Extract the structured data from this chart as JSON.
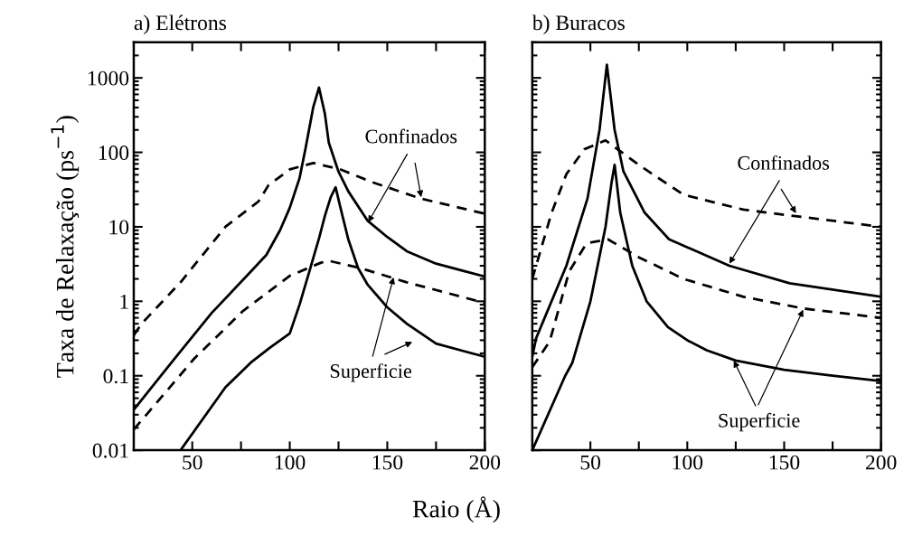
{
  "chart_data": [
    {
      "type": "line",
      "title": "a) Elétrons",
      "xlabel": "Raio (Å)",
      "ylabel": "Taxa de Relaxação (ps$^{−1}$)",
      "xlim": [
        20,
        200
      ],
      "xticks": [
        50,
        {
          "value": 75,
          "label": null
        },
        100,
        {
          "value": 125,
          "label": null
        },
        150,
        {
          "value": 175,
          "label": null
        },
        200
      ],
      "ylim": [
        0.01,
        3000
      ],
      "yticks": [
        0.01,
        0.1,
        1,
        10,
        100,
        1000
      ],
      "log": "y",
      "grid": false,
      "legend": false,
      "series": [
        {
          "color": "#000000",
          "line_style": "solid",
          "x": [
            20,
            41,
            60,
            80,
            88,
            95,
            100,
            105,
            108,
            112,
            115,
            118,
            120,
            125,
            130,
            140,
            150,
            160,
            175,
            200
          ],
          "values": [
            0.035,
            0.17,
            0.7,
            2.5,
            4.2,
            9,
            18,
            45,
            110,
            400,
            740,
            330,
            135,
            55,
            30,
            12,
            7.3,
            4.7,
            3.2,
            2.15
          ]
        },
        {
          "color": "#000000",
          "line_style": "solid",
          "x": [
            44,
            67,
            80,
            90,
            100,
            105,
            110,
            115,
            118,
            121,
            123.5,
            126,
            130,
            135,
            140,
            150,
            160,
            175,
            200
          ],
          "values": [
            0.01,
            0.07,
            0.15,
            0.24,
            0.37,
            0.9,
            2.5,
            7,
            14,
            25,
            34,
            18,
            6.8,
            2.8,
            1.66,
            0.83,
            0.5,
            0.27,
            0.18
          ]
        },
        {
          "color": "#000000",
          "line_style": "dashed",
          "x": [
            20,
            24,
            44,
            67,
            84,
            89,
            100,
            112,
            126,
            142,
            167,
            200
          ],
          "values": [
            0.35,
            0.5,
            1.8,
            10,
            22,
            36,
            59,
            72,
            59,
            40,
            24,
            15
          ]
        },
        {
          "color": "#000000",
          "line_style": "dashed",
          "x": [
            20,
            26.5,
            51,
            76,
            100,
            116,
            120,
            136,
            160,
            200
          ],
          "values": [
            0.019,
            0.03,
            0.17,
            0.74,
            2.2,
            3.3,
            3.5,
            2.8,
            1.8,
            0.95
          ]
        }
      ],
      "annotations": [
        {
          "text": "Confinados",
          "x": 140.2,
          "y": 11.5
        },
        {
          "text": "Superficie",
          "x": 153.2,
          "y": 2.1
        }
      ]
    },
    {
      "type": "line",
      "title": "b) Buracos",
      "xlim": [
        20,
        200
      ],
      "xticks": [
        50,
        {
          "value": 75,
          "label": null
        },
        100,
        {
          "value": 125,
          "label": null
        },
        150,
        {
          "value": 175,
          "label": null
        },
        200
      ],
      "ylim": [
        0.01,
        3000
      ],
      "yticks": [
        0.01,
        0.1,
        1,
        10,
        100,
        1000
      ],
      "log": "y",
      "grid": false,
      "legend": false,
      "tick_labels": "x",
      "series": [
        {
          "color": "#000000",
          "line_style": "solid",
          "x": [
            20,
            22,
            37.6,
            48.5,
            54.7,
            58.5,
            62.5,
            67,
            78,
            90.6,
            121.7,
            152.8,
            200
          ],
          "values": [
            0.18,
            0.32,
            3,
            24,
            200,
            1500,
            200,
            56,
            15.5,
            6.8,
            3,
            1.75,
            1.15
          ]
        },
        {
          "color": "#000000",
          "line_style": "solid",
          "x": [
            20,
            37,
            40.7,
            50,
            57.8,
            60.9,
            62.5,
            65.4,
            71.6,
            79,
            90,
            100,
            110,
            125,
            150,
            175,
            200
          ],
          "values": [
            0.01,
            0.1,
            0.15,
            1,
            10,
            39,
            68,
            15.5,
            3,
            1,
            0.45,
            0.3,
            0.22,
            0.16,
            0.12,
            0.1,
            0.085
          ]
        },
        {
          "color": "#000000",
          "line_style": "dashed",
          "x": [
            20,
            22,
            29.8,
            37.6,
            46.9,
            57.8,
            74.9,
            98,
            129,
            160,
            200
          ],
          "values": [
            2,
            3,
            15,
            51,
            110,
            145,
            68,
            27,
            17,
            13.5,
            10
          ]
        },
        {
          "color": "#000000",
          "line_style": "dashed",
          "x": [
            20,
            29,
            39,
            48,
            59,
            75,
            98,
            129,
            160,
            200
          ],
          "values": [
            0.13,
            0.29,
            2.5,
            6,
            6.8,
            3.9,
            2,
            1.15,
            0.8,
            0.6
          ]
        }
      ],
      "annotations": [
        {
          "text": "Confinados",
          "x": 121.7,
          "y": 3.2
        },
        {
          "text": "Superficie",
          "x": 124,
          "y": 0.16
        }
      ]
    }
  ]
}
